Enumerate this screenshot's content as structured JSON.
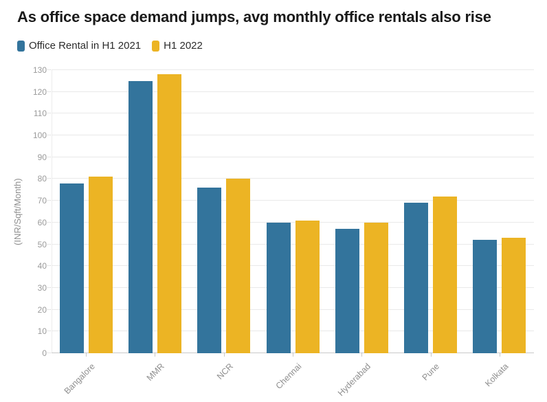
{
  "title": "As office space demand jumps, avg monthly office rentals also rise",
  "legend": [
    {
      "label": "Office Rental in H1 2021",
      "color": "#33749c"
    },
    {
      "label": "H1 2022",
      "color": "#ecb424"
    }
  ],
  "chart_data": {
    "type": "bar",
    "title": "As office space demand jumps, avg monthly office rentals also rise",
    "categories": [
      "Bangalore",
      "MMR",
      "NCR",
      "Chennai",
      "Hyderabad",
      "Pune",
      "Kolkata"
    ],
    "series": [
      {
        "name": "Office Rental in H1 2021",
        "color": "#33749c",
        "values": [
          78,
          125,
          76,
          60,
          57,
          69,
          52
        ]
      },
      {
        "name": "H1 2022",
        "color": "#ecb424",
        "values": [
          81,
          128,
          80,
          61,
          60,
          72,
          53
        ]
      }
    ],
    "xlabel": "",
    "ylabel": "(INR/Sqft/Month)",
    "ylim": [
      0,
      130
    ],
    "ytick_step": 10,
    "grid": true,
    "legend_position": "top-left"
  }
}
